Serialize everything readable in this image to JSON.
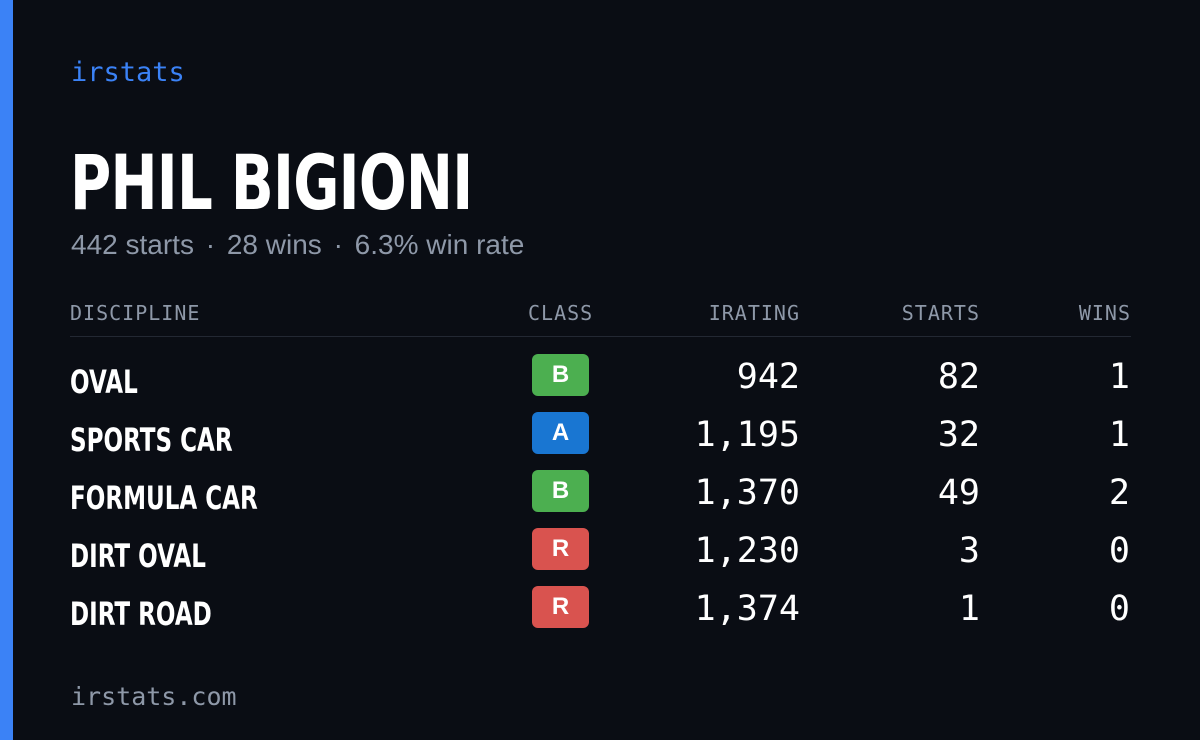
{
  "brand": "irstats",
  "player": {
    "name": "PHIL BIGIONI",
    "starts_text": "442 starts",
    "wins_text": "28 wins",
    "win_rate_text": "6.3% win rate",
    "separator": "·"
  },
  "table": {
    "headers": {
      "discipline": "DISCIPLINE",
      "class": "CLASS",
      "irating": "IRATING",
      "starts": "STARTS",
      "wins": "WINS"
    },
    "rows": [
      {
        "discipline": "OVAL",
        "class": "B",
        "class_color": "#4caf50",
        "irating": "942",
        "starts": "82",
        "wins": "1"
      },
      {
        "discipline": "SPORTS CAR",
        "class": "A",
        "class_color": "#1976d2",
        "irating": "1,195",
        "starts": "32",
        "wins": "1"
      },
      {
        "discipline": "FORMULA CAR",
        "class": "B",
        "class_color": "#4caf50",
        "irating": "1,370",
        "starts": "49",
        "wins": "2"
      },
      {
        "discipline": "DIRT OVAL",
        "class": "R",
        "class_color": "#d9534f",
        "irating": "1,230",
        "starts": "3",
        "wins": "0"
      },
      {
        "discipline": "DIRT ROAD",
        "class": "R",
        "class_color": "#d9534f",
        "irating": "1,374",
        "starts": "1",
        "wins": "0"
      }
    ]
  },
  "footer": {
    "url": "irstats.com"
  },
  "colors": {
    "accent": "#3b82f6",
    "background": "#0a0d14",
    "muted_text": "#8e98a8"
  }
}
